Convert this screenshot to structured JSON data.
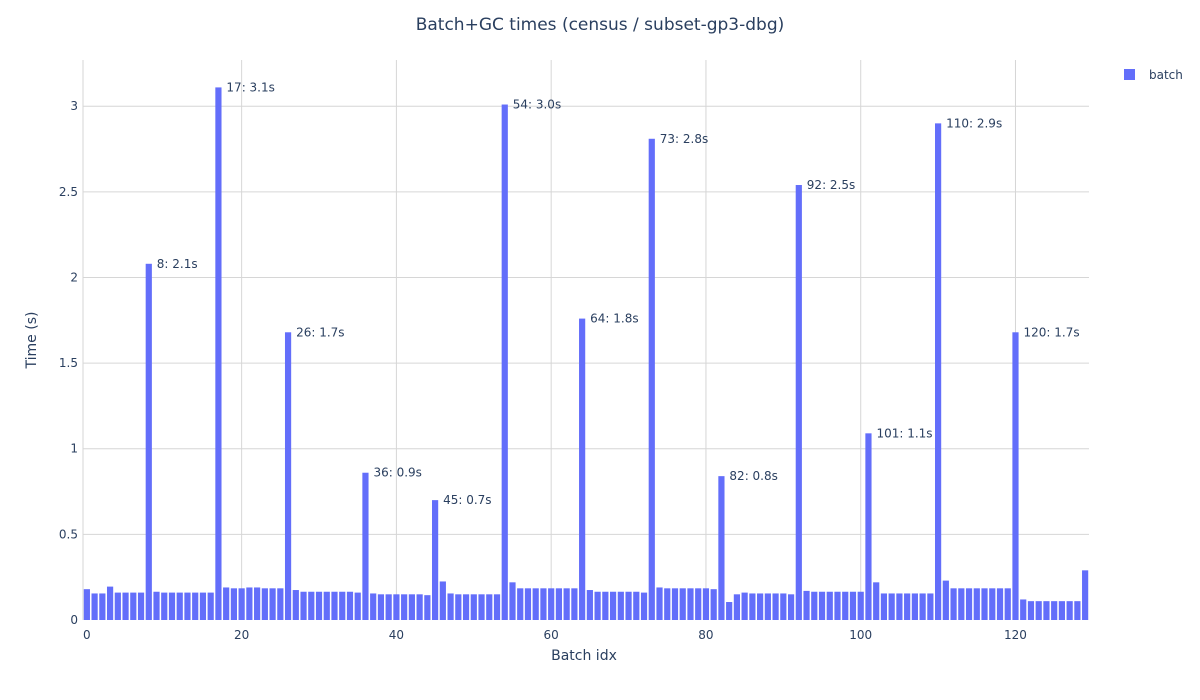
{
  "chart_data": {
    "type": "bar",
    "title": "Batch+GC times (census / subset-gp3-dbg)",
    "xlabel": "Batch idx",
    "ylabel": "Time (s)",
    "xlim": [
      -0.5,
      129.5
    ],
    "ylim": [
      0,
      3.27
    ],
    "xticks": [
      0,
      20,
      40,
      60,
      80,
      100,
      120
    ],
    "yticks": [
      0,
      0.5,
      1,
      1.5,
      2,
      2.5,
      3
    ],
    "ytick_labels": [
      "0",
      "0.5",
      "1",
      "1.5",
      "2",
      "2.5",
      "3"
    ],
    "grid": true,
    "legend_position": "top-right",
    "series": [
      {
        "name": "batch",
        "color": "#636efa",
        "values": [
          0.18,
          0.155,
          0.155,
          0.195,
          0.16,
          0.16,
          0.16,
          0.16,
          2.08,
          0.165,
          0.16,
          0.16,
          0.16,
          0.16,
          0.16,
          0.16,
          0.16,
          3.11,
          0.19,
          0.185,
          0.185,
          0.19,
          0.19,
          0.185,
          0.185,
          0.185,
          1.68,
          0.175,
          0.165,
          0.165,
          0.165,
          0.165,
          0.165,
          0.165,
          0.165,
          0.16,
          0.86,
          0.155,
          0.15,
          0.15,
          0.15,
          0.15,
          0.15,
          0.15,
          0.145,
          0.7,
          0.225,
          0.155,
          0.15,
          0.15,
          0.15,
          0.15,
          0.15,
          0.15,
          3.01,
          0.22,
          0.185,
          0.185,
          0.185,
          0.185,
          0.185,
          0.185,
          0.185,
          0.185,
          1.76,
          0.175,
          0.165,
          0.165,
          0.165,
          0.165,
          0.165,
          0.165,
          0.16,
          2.81,
          0.19,
          0.185,
          0.185,
          0.185,
          0.185,
          0.185,
          0.185,
          0.18,
          0.84,
          0.105,
          0.15,
          0.16,
          0.155,
          0.155,
          0.155,
          0.155,
          0.155,
          0.15,
          2.54,
          0.17,
          0.165,
          0.165,
          0.165,
          0.165,
          0.165,
          0.165,
          0.165,
          1.09,
          0.22,
          0.155,
          0.155,
          0.155,
          0.155,
          0.155,
          0.155,
          0.155,
          2.9,
          0.23,
          0.185,
          0.185,
          0.185,
          0.185,
          0.185,
          0.185,
          0.185,
          0.185,
          1.68,
          0.12,
          0.11,
          0.11,
          0.11,
          0.11,
          0.11,
          0.11,
          0.11,
          0.29
        ]
      }
    ],
    "annotations": [
      {
        "x": 8,
        "y": 2.08,
        "text": "8: 2.1s"
      },
      {
        "x": 17,
        "y": 3.11,
        "text": "17: 3.1s"
      },
      {
        "x": 26,
        "y": 1.68,
        "text": "26: 1.7s"
      },
      {
        "x": 36,
        "y": 0.86,
        "text": "36: 0.9s"
      },
      {
        "x": 45,
        "y": 0.7,
        "text": "45: 0.7s"
      },
      {
        "x": 54,
        "y": 3.01,
        "text": "54: 3.0s"
      },
      {
        "x": 64,
        "y": 1.76,
        "text": "64: 1.8s"
      },
      {
        "x": 73,
        "y": 2.81,
        "text": "73: 2.8s"
      },
      {
        "x": 82,
        "y": 0.84,
        "text": "82: 0.8s"
      },
      {
        "x": 92,
        "y": 2.54,
        "text": "92: 2.5s"
      },
      {
        "x": 101,
        "y": 1.09,
        "text": "101: 1.1s"
      },
      {
        "x": 110,
        "y": 2.9,
        "text": "110: 2.9s"
      },
      {
        "x": 120,
        "y": 1.68,
        "text": "120: 1.7s"
      }
    ]
  }
}
